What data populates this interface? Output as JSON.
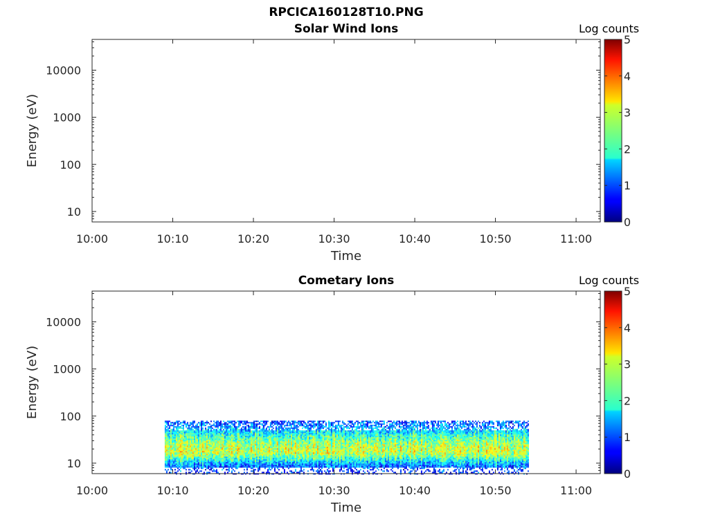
{
  "figure_title": "RPCICA160128T10.PNG",
  "chart_data": [
    {
      "type": "heatmap",
      "title": "Solar Wind Ions",
      "xlabel": "Time",
      "ylabel": "Energy (eV)",
      "x_ticks": [
        "10:00",
        "10:10",
        "10:20",
        "10:30",
        "10:40",
        "10:50",
        "11:00"
      ],
      "xlim": [
        "10:00",
        "11:03"
      ],
      "y_scale": "log",
      "y_ticks": [
        10,
        100,
        1000,
        10000
      ],
      "ylim": [
        6,
        45000
      ],
      "colorbar": {
        "label": "Log counts",
        "ticks": [
          0,
          1,
          2,
          3,
          4,
          5
        ],
        "range": [
          0,
          5
        ],
        "colormap": "jet"
      },
      "data": []
    },
    {
      "type": "heatmap",
      "title": "Cometary Ions",
      "xlabel": "Time",
      "ylabel": "Energy (eV)",
      "x_ticks": [
        "10:00",
        "10:10",
        "10:20",
        "10:30",
        "10:40",
        "10:50",
        "11:00"
      ],
      "xlim": [
        "10:00",
        "11:03"
      ],
      "y_scale": "log",
      "y_ticks": [
        10,
        100,
        1000,
        10000
      ],
      "ylim": [
        6,
        45000
      ],
      "colorbar": {
        "label": "Log counts",
        "ticks": [
          0,
          1,
          2,
          3,
          4,
          5
        ],
        "range": [
          0,
          5
        ],
        "colormap": "jet"
      },
      "data": {
        "time_range": [
          "10:09",
          "10:54"
        ],
        "energy_range": [
          6,
          80
        ],
        "profile": [
          {
            "energy": 80,
            "log_counts": 1.0
          },
          {
            "energy": 60,
            "log_counts": 1.3
          },
          {
            "energy": 45,
            "log_counts": 1.9
          },
          {
            "energy": 35,
            "log_counts": 2.3
          },
          {
            "energy": 28,
            "log_counts": 2.6
          },
          {
            "energy": 22,
            "log_counts": 2.8
          },
          {
            "energy": 18,
            "log_counts": 2.9
          },
          {
            "energy": 15,
            "log_counts": 2.6
          },
          {
            "energy": 13,
            "log_counts": 2.2
          },
          {
            "energy": 11,
            "log_counts": 1.7
          },
          {
            "energy": 9,
            "log_counts": 1.2
          },
          {
            "energy": 7,
            "log_counts": 0.8
          },
          {
            "energy": 6,
            "log_counts": 0.5
          }
        ]
      }
    }
  ]
}
